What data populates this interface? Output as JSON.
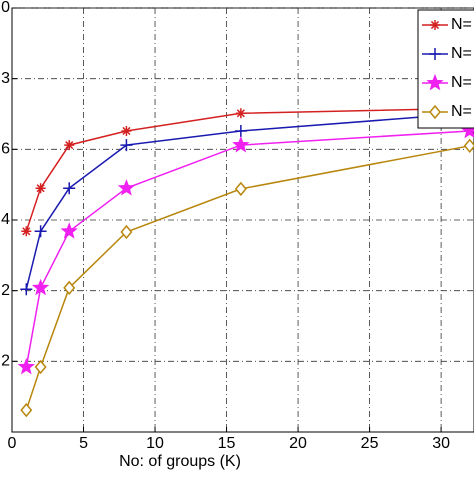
{
  "chart_data": {
    "type": "line",
    "x_label": "No: of groups (K)",
    "xlim": [
      0,
      32.3
    ],
    "xticks": [
      0,
      5,
      10,
      15,
      20,
      25,
      30
    ],
    "ylim": [
      0,
      6
    ],
    "yticks": [
      {
        "value": 1,
        "label": "2"
      },
      {
        "value": 2,
        "label": "2"
      },
      {
        "value": 3,
        "label": "4"
      },
      {
        "value": 4,
        "label": "6"
      },
      {
        "value": 5,
        "label": "3"
      },
      {
        "value": 6,
        "label": "0"
      }
    ],
    "grid": true,
    "legend": "upper right",
    "x": [
      1,
      2,
      4,
      8,
      16,
      32
    ],
    "series": [
      {
        "name": "N=",
        "color": "#d42020",
        "marker": "asterisk",
        "values": [
          2.84,
          3.45,
          4.06,
          4.26,
          4.51,
          4.58
        ]
      },
      {
        "name": "N=",
        "color": "#1a1ab0",
        "marker": "plus",
        "values": [
          2.02,
          2.84,
          3.45,
          4.06,
          4.26,
          4.51
        ]
      },
      {
        "name": "N=",
        "color": "#f020f0",
        "marker": "star",
        "values": [
          0.92,
          2.04,
          2.84,
          3.45,
          4.06,
          4.26
        ]
      },
      {
        "name": "N=",
        "color": "#b8860b",
        "marker": "diamond",
        "values": [
          0.31,
          0.92,
          2.04,
          2.83,
          3.44,
          4.05
        ]
      }
    ]
  }
}
